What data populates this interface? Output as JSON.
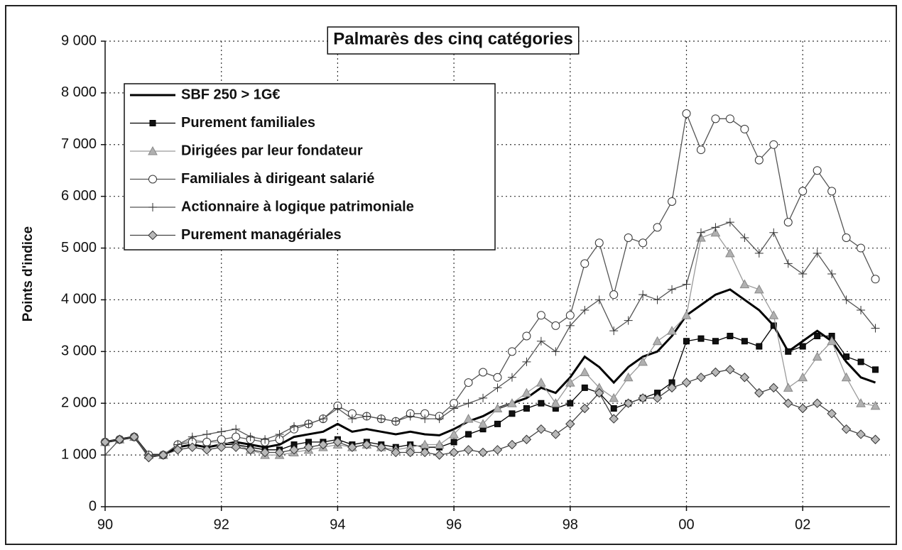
{
  "chart_data": {
    "type": "line",
    "title": "Palmarès des cinq catégories",
    "ylabel": "Points d'indice",
    "xlim": [
      1990,
      2003.5
    ],
    "xticks": [
      {
        "value": 1990,
        "label": "90"
      },
      {
        "value": 1992,
        "label": "92"
      },
      {
        "value": 1994,
        "label": "94"
      },
      {
        "value": 1996,
        "label": "96"
      },
      {
        "value": 1998,
        "label": "98"
      },
      {
        "value": 2000,
        "label": "00"
      },
      {
        "value": 2002,
        "label": "02"
      }
    ],
    "ylim": [
      0,
      9000
    ],
    "yticks": [
      0,
      {
        "value": 1000,
        "label": "1 000"
      },
      {
        "value": 2000,
        "label": "2 000"
      },
      {
        "value": 3000,
        "label": "3 000"
      },
      {
        "value": 4000,
        "label": "4 000"
      },
      {
        "value": 5000,
        "label": "5 000"
      },
      {
        "value": 6000,
        "label": "6 000"
      },
      {
        "value": 7000,
        "label": "7 000"
      },
      {
        "value": 8000,
        "label": "8 000"
      },
      {
        "value": 9000,
        "label": "9 000"
      }
    ],
    "grid": true,
    "legend": "upper left",
    "x": [
      1990,
      1990.25,
      1990.5,
      1990.75,
      1991,
      1991.25,
      1991.5,
      1991.75,
      1992,
      1992.25,
      1992.5,
      1992.75,
      1993,
      1993.25,
      1993.5,
      1993.75,
      1994,
      1994.25,
      1994.5,
      1994.75,
      1995,
      1995.25,
      1995.5,
      1995.75,
      1996,
      1996.25,
      1996.5,
      1996.75,
      1997,
      1997.25,
      1997.5,
      1997.75,
      1998,
      1998.25,
      1998.5,
      1998.75,
      1999,
      1999.25,
      1999.5,
      1999.75,
      2000,
      2000.25,
      2000.5,
      2000.75,
      2001,
      2001.25,
      2001.5,
      2001.75,
      2002,
      2002.25,
      2002.5,
      2002.75,
      2003,
      2003.25
    ],
    "series": [
      {
        "name": "SBF 250 > 1G€",
        "color": "#000000",
        "marker": "none",
        "fill": "#000000",
        "values": [
          1250,
          1300,
          1350,
          1000,
          1000,
          1150,
          1200,
          1150,
          1200,
          1250,
          1200,
          1150,
          1200,
          1350,
          1400,
          1450,
          1600,
          1450,
          1500,
          1450,
          1400,
          1450,
          1400,
          1380,
          1500,
          1650,
          1750,
          1900,
          2000,
          2100,
          2300,
          2200,
          2500,
          2900,
          2700,
          2400,
          2700,
          2900,
          3000,
          3300,
          3700,
          3900,
          4100,
          4200,
          4000,
          3800,
          3500,
          3000,
          3200,
          3400,
          3200,
          2800,
          2500,
          2400
        ]
      },
      {
        "name": "Purement familiales",
        "color": "#000000",
        "marker": "square",
        "fill": "#111111",
        "values": [
          1250,
          1300,
          1350,
          1000,
          1000,
          1150,
          1200,
          1150,
          1200,
          1200,
          1150,
          1100,
          1100,
          1200,
          1250,
          1250,
          1300,
          1200,
          1250,
          1200,
          1150,
          1200,
          1150,
          1150,
          1250,
          1400,
          1500,
          1600,
          1800,
          1900,
          2000,
          1900,
          2000,
          2300,
          2200,
          1900,
          2000,
          2100,
          2200,
          2400,
          3200,
          3250,
          3200,
          3300,
          3200,
          3100,
          3500,
          3000,
          3100,
          3300,
          3300,
          2900,
          2800,
          2650
        ]
      },
      {
        "name": "Dirigées par leur fondateur",
        "color": "#9a9a9a",
        "marker": "triangle",
        "fill": "#b0b0b0",
        "values": [
          1250,
          1300,
          1350,
          1000,
          1000,
          1200,
          1300,
          1250,
          1250,
          1200,
          1100,
          1000,
          1000,
          1050,
          1100,
          1150,
          1200,
          1150,
          1200,
          1150,
          1100,
          1150,
          1200,
          1200,
          1400,
          1700,
          1600,
          1900,
          2000,
          2200,
          2400,
          2000,
          2400,
          2600,
          2300,
          2100,
          2500,
          2800,
          3200,
          3400,
          3700,
          5200,
          5300,
          4900,
          4300,
          4200,
          3700,
          2300,
          2500,
          2900,
          3200,
          2500,
          2000,
          1950
        ]
      },
      {
        "name": "Familiales à dirigeant salarié",
        "color": "#555555",
        "marker": "circle",
        "fill": "#ffffff",
        "values": [
          1250,
          1300,
          1350,
          1000,
          1000,
          1200,
          1250,
          1250,
          1300,
          1350,
          1300,
          1250,
          1300,
          1500,
          1600,
          1700,
          1950,
          1800,
          1750,
          1700,
          1650,
          1800,
          1800,
          1750,
          2000,
          2400,
          2600,
          2500,
          3000,
          3300,
          3700,
          3500,
          3700,
          4700,
          5100,
          4100,
          5200,
          5100,
          5400,
          5900,
          7600,
          6900,
          7500,
          7500,
          7300,
          6700,
          7000,
          5500,
          6100,
          6500,
          6100,
          5200,
          5000,
          4400
        ]
      },
      {
        "name": "Actionnaire à logique patrimoniale",
        "color": "#555555",
        "marker": "plus",
        "fill": "none",
        "values": [
          1000,
          1300,
          1350,
          1000,
          1000,
          1200,
          1350,
          1400,
          1450,
          1500,
          1350,
          1300,
          1400,
          1550,
          1600,
          1700,
          1900,
          1700,
          1750,
          1700,
          1650,
          1750,
          1700,
          1700,
          1900,
          2000,
          2100,
          2300,
          2500,
          2800,
          3200,
          3000,
          3500,
          3800,
          4000,
          3400,
          3600,
          4100,
          4000,
          4200,
          4300,
          5300,
          5400,
          5500,
          5200,
          4900,
          5300,
          4700,
          4500,
          4900,
          4500,
          4000,
          3800,
          3450
        ]
      },
      {
        "name": "Purement managériales",
        "color": "#444444",
        "marker": "diamond",
        "fill": "#b8b8b8",
        "values": [
          1250,
          1300,
          1350,
          950,
          1000,
          1100,
          1150,
          1100,
          1150,
          1150,
          1100,
          1050,
          1050,
          1100,
          1150,
          1200,
          1250,
          1150,
          1200,
          1150,
          1050,
          1050,
          1050,
          1000,
          1050,
          1100,
          1050,
          1100,
          1200,
          1300,
          1500,
          1400,
          1600,
          1900,
          2200,
          1700,
          2000,
          2100,
          2100,
          2300,
          2400,
          2500,
          2600,
          2650,
          2500,
          2200,
          2300,
          2000,
          1900,
          2000,
          1800,
          1500,
          1400,
          1300
        ]
      }
    ]
  }
}
